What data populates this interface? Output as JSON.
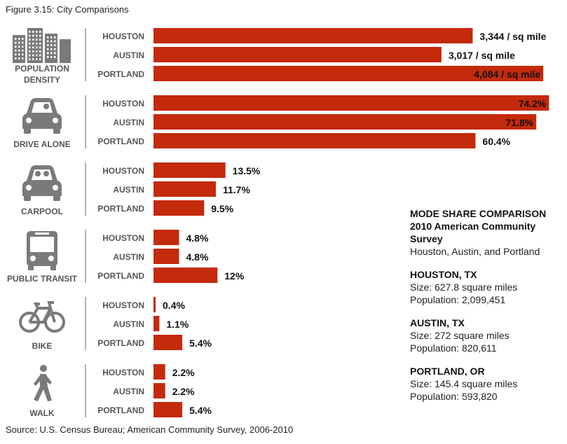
{
  "figure_title": "Figure 3.15: City Comparisons",
  "source": "Source:  U.S. Census Bureau; American Community Survey, 2006-2010",
  "colors": {
    "bar": "#c42a0c",
    "divider": "#999999",
    "icon": "#7a7a7a"
  },
  "info": {
    "heading": "MODE SHARE COMPARISON 2010 American Community Survey",
    "subheading": "Houston, Austin, and Portland",
    "cities": [
      {
        "name": "HOUSTON, TX",
        "size": "Size: 627.8 square miles",
        "population": "Population: 2,099,451"
      },
      {
        "name": "AUSTIN, TX",
        "size": "Size: 272  square miles",
        "population": "Population: 820,611"
      },
      {
        "name": "PORTLAND, OR",
        "size": "Size: 145.4 square miles",
        "population": "Population: 593,820"
      }
    ]
  },
  "chart_data": {
    "type": "bar",
    "orientation": "horizontal",
    "groups": [
      {
        "category": "POPULATION DENSITY",
        "icon": "buildings-icon",
        "max": 4200,
        "bars": [
          {
            "city": "HOUSTON",
            "value": 3344,
            "label": "3,344 / sq mile"
          },
          {
            "city": "AUSTIN",
            "value": 3017,
            "label": "3,017 / sq mile"
          },
          {
            "city": "PORTLAND",
            "value": 4084,
            "label": "4,084 / sq mile"
          }
        ]
      },
      {
        "category": "DRIVE ALONE",
        "icon": "car-icon",
        "max": 75.2,
        "bars": [
          {
            "city": "HOUSTON",
            "value": 74.2,
            "label": "74.2%"
          },
          {
            "city": "AUSTIN",
            "value": 71.8,
            "label": "71.8%"
          },
          {
            "city": "PORTLAND",
            "value": 60.4,
            "label": "60.4%"
          }
        ]
      },
      {
        "category": "CARPOOL",
        "icon": "carpool-icon",
        "max": 75.2,
        "bars": [
          {
            "city": "HOUSTON",
            "value": 13.5,
            "label": "13.5%"
          },
          {
            "city": "AUSTIN",
            "value": 11.7,
            "label": "11.7%"
          },
          {
            "city": "PORTLAND",
            "value": 9.5,
            "label": "9.5%"
          }
        ]
      },
      {
        "category": "PUBLIC TRANSIT",
        "icon": "bus-icon",
        "max": 75.2,
        "bars": [
          {
            "city": "HOUSTON",
            "value": 4.8,
            "label": "4.8%"
          },
          {
            "city": "AUSTIN",
            "value": 4.8,
            "label": "4.8%"
          },
          {
            "city": "PORTLAND",
            "value": 12,
            "label": "12%"
          }
        ]
      },
      {
        "category": "BIKE",
        "icon": "bicycle-icon",
        "max": 75.2,
        "bars": [
          {
            "city": "HOUSTON",
            "value": 0.4,
            "label": "0.4%"
          },
          {
            "city": "AUSTIN",
            "value": 1.1,
            "label": "1.1%"
          },
          {
            "city": "PORTLAND",
            "value": 5.4,
            "label": "5.4%"
          }
        ]
      },
      {
        "category": "WALK",
        "icon": "pedestrian-icon",
        "max": 75.2,
        "bars": [
          {
            "city": "HOUSTON",
            "value": 2.2,
            "label": "2.2%"
          },
          {
            "city": "AUSTIN",
            "value": 2.2,
            "label": "2.2%"
          },
          {
            "city": "PORTLAND",
            "value": 5.4,
            "label": "5.4%"
          }
        ]
      }
    ]
  }
}
